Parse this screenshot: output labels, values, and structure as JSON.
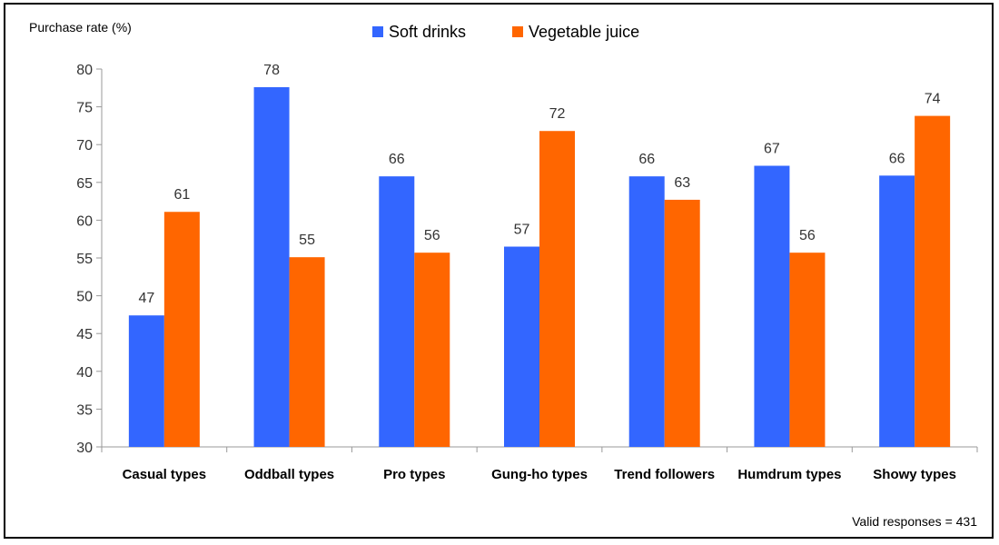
{
  "chart_data": {
    "type": "bar",
    "ylabel": "Purchase rate (%)",
    "xlabel": "",
    "ylim": [
      30,
      80
    ],
    "yticks": [
      30,
      35,
      40,
      45,
      50,
      55,
      60,
      65,
      70,
      75,
      80
    ],
    "categories": [
      "Casual types",
      "Oddball types",
      "Pro types",
      "Gung-ho types",
      "Trend followers",
      "Humdrum types",
      "Showy types"
    ],
    "series": [
      {
        "name": "Soft drinks",
        "color": "#3366ff",
        "values": [
          47,
          78,
          66,
          57,
          66,
          67,
          66
        ],
        "bar_values": [
          47.4,
          77.6,
          65.8,
          56.5,
          65.8,
          67.2,
          65.9
        ]
      },
      {
        "name": "Vegetable juice",
        "color": "#ff6600",
        "values": [
          61,
          55,
          56,
          72,
          63,
          56,
          74
        ],
        "bar_values": [
          61.1,
          55.1,
          55.7,
          71.8,
          62.7,
          55.7,
          73.8
        ]
      }
    ],
    "legend": "top-center",
    "grid": false,
    "note": "Valid responses = 431"
  }
}
